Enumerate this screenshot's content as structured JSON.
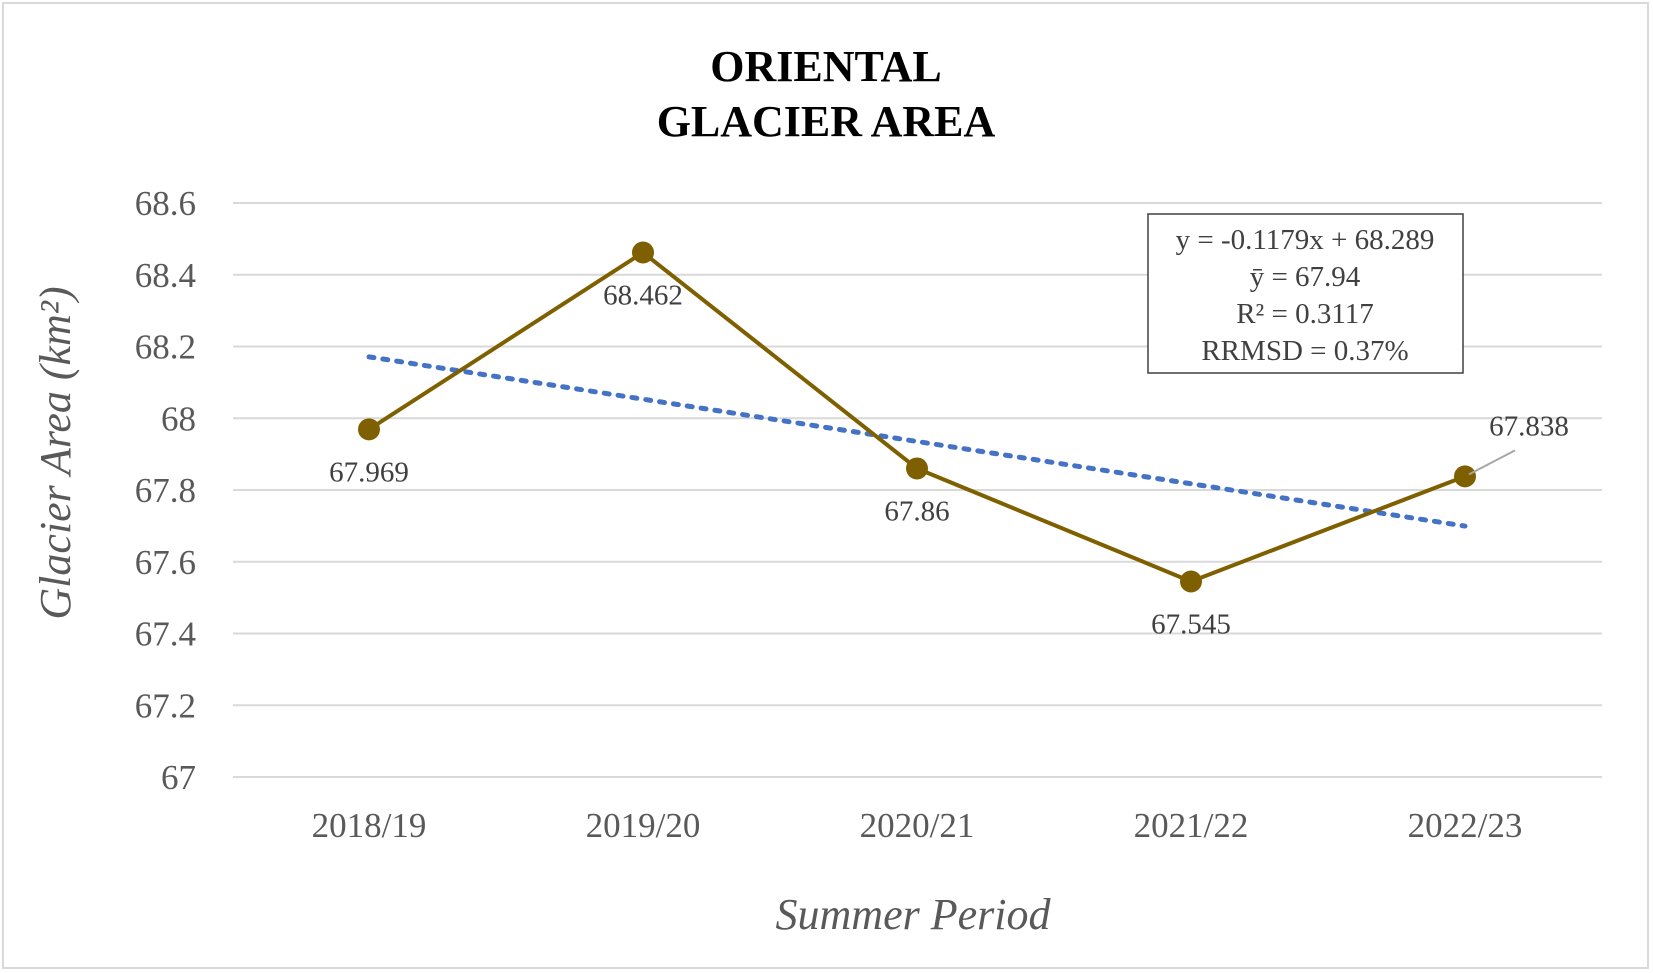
{
  "chart_data": {
    "type": "line",
    "title": [
      "ORIENTAL",
      "GLACIER AREA"
    ],
    "xlabel": "Summer Period",
    "ylabel": "Glacier Area (km²)",
    "categories": [
      "2018/19",
      "2019/20",
      "2020/21",
      "2021/22",
      "2022/23"
    ],
    "series": [
      {
        "values": [
          67.969,
          68.462,
          67.86,
          67.545,
          67.838
        ],
        "color": "#7f6000"
      }
    ],
    "data_labels": [
      "67.969",
      "68.462",
      "67.86",
      "67.545",
      "67.838"
    ],
    "trendline": {
      "type": "linear",
      "slope": -0.1179,
      "intercept": 68.289,
      "color": "#4472c4",
      "style": "dotted"
    },
    "ylim": [
      67,
      68.6
    ],
    "yticks": [
      "67",
      "67.2",
      "67.4",
      "67.6",
      "67.8",
      "68",
      "68.2",
      "68.4",
      "68.6"
    ],
    "grid": true,
    "stats_box": [
      "y = -0.1179x + 68.289",
      "ȳ = 67.94",
      "R² = 0.3117",
      "RRMSD = 0.37%"
    ]
  }
}
